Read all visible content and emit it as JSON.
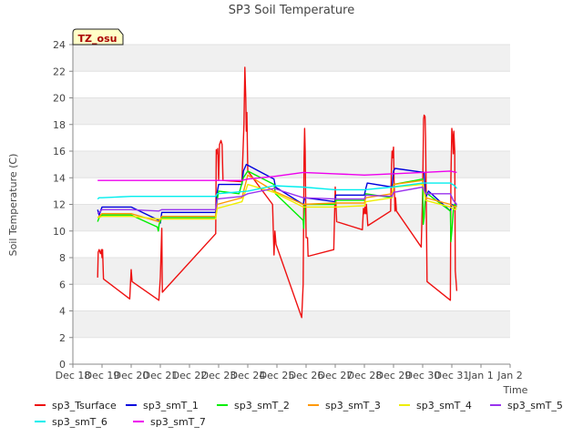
{
  "chart_data": {
    "type": "line",
    "title": "SP3 Soil Temperature",
    "ylabel": "Soil Temperature (C)",
    "xlabel": "Time",
    "ylim": [
      0,
      24
    ],
    "yticks": [
      0,
      2,
      4,
      6,
      8,
      10,
      12,
      14,
      16,
      18,
      20,
      22,
      24
    ],
    "xlim": [
      "Dec 18",
      "Jan 2"
    ],
    "xticks": [
      "Dec 18",
      "Dec 19",
      "Dec 20",
      "Dec 21",
      "Dec 22",
      "Dec 23",
      "Dec 24",
      "Dec 25",
      "Dec 26",
      "Dec 27",
      "Dec 28",
      "Dec 29",
      "Dec 30",
      "Dec 31",
      "Jan 1",
      "Jan 2"
    ],
    "grid": "horizontal bands",
    "legend": "bottom",
    "annotation": "TZ_osu",
    "series": [
      {
        "name": "sp3_Tsurface",
        "color": "#ee1111",
        "points": [
          [
            0.85,
            6.5
          ],
          [
            0.87,
            8.4
          ],
          [
            0.9,
            8.6
          ],
          [
            0.95,
            8.3
          ],
          [
            0.98,
            8.6
          ],
          [
            1.0,
            8.0
          ],
          [
            1.02,
            8.6
          ],
          [
            1.05,
            6.4
          ],
          [
            1.95,
            4.9
          ],
          [
            2.0,
            7.1
          ],
          [
            2.03,
            6.2
          ],
          [
            2.95,
            4.8
          ],
          [
            3.0,
            6.5
          ],
          [
            3.05,
            10.2
          ],
          [
            3.07,
            5.4
          ],
          [
            4.9,
            9.8
          ],
          [
            4.92,
            16.1
          ],
          [
            4.95,
            15.8
          ],
          [
            4.97,
            16.2
          ],
          [
            5.0,
            13.8
          ],
          [
            5.03,
            16.5
          ],
          [
            5.08,
            16.8
          ],
          [
            5.12,
            16.5
          ],
          [
            5.15,
            13.8
          ],
          [
            5.8,
            13.7
          ],
          [
            5.87,
            18.0
          ],
          [
            5.9,
            22.3
          ],
          [
            5.93,
            20.0
          ],
          [
            5.95,
            17.5
          ],
          [
            5.97,
            18.9
          ],
          [
            6.0,
            14.5
          ],
          [
            6.85,
            12.0
          ],
          [
            6.9,
            8.2
          ],
          [
            6.93,
            10.0
          ],
          [
            6.97,
            9.0
          ],
          [
            7.85,
            3.5
          ],
          [
            7.9,
            6.0
          ],
          [
            7.93,
            15.5
          ],
          [
            7.95,
            17.7
          ],
          [
            7.97,
            16.0
          ],
          [
            8.0,
            9.5
          ],
          [
            8.05,
            9.5
          ],
          [
            8.07,
            8.1
          ],
          [
            8.95,
            8.6
          ],
          [
            9.0,
            13.3
          ],
          [
            9.05,
            10.7
          ],
          [
            9.93,
            10.1
          ],
          [
            9.97,
            11.7
          ],
          [
            10.0,
            11.3
          ],
          [
            10.02,
            11.8
          ],
          [
            10.05,
            11.3
          ],
          [
            10.07,
            12.0
          ],
          [
            10.12,
            10.4
          ],
          [
            10.9,
            11.5
          ],
          [
            10.93,
            15.0
          ],
          [
            10.95,
            16.0
          ],
          [
            10.97,
            15.5
          ],
          [
            11.0,
            16.3
          ],
          [
            11.02,
            13.8
          ],
          [
            11.05,
            11.5
          ],
          [
            11.07,
            12.5
          ],
          [
            11.1,
            11.5
          ],
          [
            11.95,
            8.8
          ],
          [
            12.0,
            13.0
          ],
          [
            12.03,
            18.4
          ],
          [
            12.05,
            18.7
          ],
          [
            12.08,
            18.6
          ],
          [
            12.1,
            17.0
          ],
          [
            12.15,
            6.2
          ],
          [
            12.95,
            4.8
          ],
          [
            12.97,
            14.0
          ],
          [
            13.0,
            17.7
          ],
          [
            13.03,
            17.0
          ],
          [
            13.05,
            15.8
          ],
          [
            13.07,
            17.5
          ],
          [
            13.1,
            16.0
          ],
          [
            13.12,
            7.0
          ],
          [
            13.15,
            6.1
          ],
          [
            13.17,
            5.5
          ]
        ]
      },
      {
        "name": "sp3_smT_1",
        "color": "#0000dd",
        "points": [
          [
            0.85,
            11.6
          ],
          [
            0.9,
            11.2
          ],
          [
            1.0,
            11.8
          ],
          [
            2.0,
            11.8
          ],
          [
            2.95,
            10.8
          ],
          [
            3.0,
            10.6
          ],
          [
            3.05,
            11.4
          ],
          [
            4.9,
            11.4
          ],
          [
            4.95,
            12.9
          ],
          [
            5.0,
            13.5
          ],
          [
            5.8,
            13.5
          ],
          [
            5.85,
            14.5
          ],
          [
            5.95,
            15.0
          ],
          [
            6.9,
            13.9
          ],
          [
            6.95,
            13.3
          ],
          [
            7.9,
            12.0
          ],
          [
            7.95,
            12.5
          ],
          [
            9.0,
            12.2
          ],
          [
            9.02,
            12.7
          ],
          [
            10.0,
            12.7
          ],
          [
            10.05,
            13.2
          ],
          [
            10.1,
            13.6
          ],
          [
            10.95,
            13.3
          ],
          [
            11.0,
            14.5
          ],
          [
            11.05,
            14.7
          ],
          [
            12.05,
            14.4
          ],
          [
            12.1,
            12.5
          ],
          [
            12.2,
            13.0
          ],
          [
            12.95,
            11.5
          ],
          [
            13.0,
            12.0
          ],
          [
            13.1,
            11.9
          ],
          [
            13.17,
            12.0
          ]
        ]
      },
      {
        "name": "sp3_smT_2",
        "color": "#00ee00",
        "points": [
          [
            0.85,
            10.7
          ],
          [
            0.9,
            11.0
          ],
          [
            1.0,
            11.2
          ],
          [
            2.0,
            11.2
          ],
          [
            2.9,
            10.3
          ],
          [
            2.93,
            10.0
          ],
          [
            2.96,
            10.5
          ],
          [
            3.05,
            11.0
          ],
          [
            4.9,
            11.0
          ],
          [
            4.95,
            12.3
          ],
          [
            5.0,
            13.0
          ],
          [
            5.7,
            12.8
          ],
          [
            5.85,
            14.0
          ],
          [
            6.0,
            14.5
          ],
          [
            6.9,
            13.5
          ],
          [
            6.95,
            12.8
          ],
          [
            7.9,
            10.8
          ],
          [
            7.92,
            10.2
          ],
          [
            7.95,
            12.0
          ],
          [
            9.0,
            12.0
          ],
          [
            9.02,
            12.3
          ],
          [
            10.0,
            12.3
          ],
          [
            10.05,
            12.8
          ],
          [
            10.95,
            12.5
          ],
          [
            11.0,
            13.5
          ],
          [
            12.0,
            13.9
          ],
          [
            12.02,
            10.5
          ],
          [
            12.05,
            11.0
          ],
          [
            12.1,
            12.9
          ],
          [
            12.95,
            11.5
          ],
          [
            12.97,
            9.2
          ],
          [
            13.0,
            10.0
          ],
          [
            13.05,
            11.5
          ],
          [
            13.1,
            12.0
          ],
          [
            13.17,
            11.8
          ]
        ]
      },
      {
        "name": "sp3_smT_3",
        "color": "#ff9900",
        "points": [
          [
            0.85,
            11.0
          ],
          [
            1.0,
            11.3
          ],
          [
            2.0,
            11.3
          ],
          [
            2.95,
            10.7
          ],
          [
            3.05,
            11.1
          ],
          [
            4.9,
            11.1
          ],
          [
            4.95,
            12.0
          ],
          [
            5.8,
            12.5
          ],
          [
            6.0,
            14.2
          ],
          [
            6.9,
            13.0
          ],
          [
            7.9,
            12.0
          ],
          [
            9.0,
            12.1
          ],
          [
            10.0,
            12.1
          ],
          [
            10.05,
            12.5
          ],
          [
            10.95,
            12.8
          ],
          [
            11.0,
            13.5
          ],
          [
            12.0,
            13.8
          ],
          [
            12.1,
            12.5
          ],
          [
            12.95,
            12.0
          ],
          [
            13.1,
            11.8
          ],
          [
            13.17,
            11.9
          ]
        ]
      },
      {
        "name": "sp3_smT_4",
        "color": "#eeee00",
        "points": [
          [
            0.85,
            11.0
          ],
          [
            1.0,
            11.1
          ],
          [
            2.0,
            11.1
          ],
          [
            2.95,
            10.9
          ],
          [
            3.05,
            10.9
          ],
          [
            4.9,
            10.9
          ],
          [
            4.95,
            11.7
          ],
          [
            5.8,
            12.2
          ],
          [
            6.0,
            13.5
          ],
          [
            6.9,
            12.9
          ],
          [
            7.9,
            11.8
          ],
          [
            9.0,
            11.8
          ],
          [
            10.0,
            11.9
          ],
          [
            10.05,
            12.2
          ],
          [
            10.95,
            12.5
          ],
          [
            11.0,
            13.3
          ],
          [
            12.0,
            13.5
          ],
          [
            12.1,
            12.3
          ],
          [
            12.95,
            11.8
          ],
          [
            13.1,
            11.6
          ],
          [
            13.17,
            11.7
          ]
        ]
      },
      {
        "name": "sp3_smT_5",
        "color": "#9933ee",
        "points": [
          [
            0.85,
            11.3
          ],
          [
            1.0,
            11.6
          ],
          [
            2.0,
            11.6
          ],
          [
            2.95,
            11.5
          ],
          [
            3.05,
            11.6
          ],
          [
            4.9,
            11.6
          ],
          [
            4.95,
            12.4
          ],
          [
            5.8,
            12.6
          ],
          [
            6.0,
            12.8
          ],
          [
            6.9,
            13.2
          ],
          [
            7.9,
            12.5
          ],
          [
            9.0,
            12.4
          ],
          [
            10.0,
            12.4
          ],
          [
            10.05,
            12.7
          ],
          [
            10.95,
            12.6
          ],
          [
            11.0,
            12.9
          ],
          [
            12.0,
            13.3
          ],
          [
            12.1,
            12.8
          ],
          [
            12.95,
            12.8
          ],
          [
            13.05,
            12.3
          ],
          [
            13.17,
            12.0
          ]
        ]
      },
      {
        "name": "sp3_smT_6",
        "color": "#00eeee",
        "points": [
          [
            0.85,
            12.4
          ],
          [
            0.9,
            12.5
          ],
          [
            1.0,
            12.5
          ],
          [
            2.0,
            12.6
          ],
          [
            4.9,
            12.6
          ],
          [
            4.95,
            12.8
          ],
          [
            6.0,
            13.0
          ],
          [
            6.9,
            13.4
          ],
          [
            7.9,
            13.3
          ],
          [
            9.0,
            13.1
          ],
          [
            10.0,
            13.1
          ],
          [
            10.95,
            13.3
          ],
          [
            12.0,
            13.6
          ],
          [
            12.95,
            13.6
          ],
          [
            13.1,
            13.4
          ],
          [
            13.17,
            13.2
          ]
        ]
      },
      {
        "name": "sp3_smT_7",
        "color": "#ee00ee",
        "points": [
          [
            0.85,
            13.8
          ],
          [
            2.0,
            13.8
          ],
          [
            4.9,
            13.8
          ],
          [
            5.8,
            13.8
          ],
          [
            6.0,
            13.9
          ],
          [
            6.9,
            14.1
          ],
          [
            7.9,
            14.4
          ],
          [
            9.0,
            14.3
          ],
          [
            10.0,
            14.2
          ],
          [
            10.95,
            14.3
          ],
          [
            12.0,
            14.4
          ],
          [
            12.95,
            14.5
          ],
          [
            13.17,
            14.4
          ]
        ]
      }
    ]
  }
}
